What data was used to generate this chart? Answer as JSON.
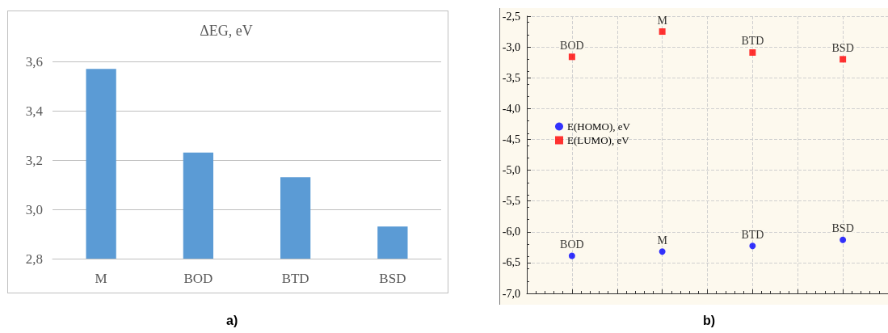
{
  "chart_data": [
    {
      "type": "bar",
      "title": "ΔEG, eV",
      "categories": [
        "M",
        "BOD",
        "BTD",
        "BSD"
      ],
      "values": [
        3.57,
        3.23,
        3.13,
        2.93
      ],
      "color": "#5b9bd5",
      "ylim": [
        2.8,
        3.6
      ],
      "yticks": [
        {
          "value": 2.8,
          "label": "2,8"
        },
        {
          "value": 3.0,
          "label": "3,0"
        },
        {
          "value": 3.2,
          "label": "3,2"
        },
        {
          "value": 3.4,
          "label": "3,4"
        },
        {
          "value": 3.6,
          "label": "3,6"
        }
      ],
      "grid": "y",
      "legend": false,
      "annotations": [
        "a)"
      ]
    },
    {
      "type": "scatter",
      "categories": [
        "BOD",
        "M",
        "BTD",
        "BSD"
      ],
      "series": [
        {
          "name": "E(HOMO), eV",
          "color": "#0000ff",
          "marker": "circle",
          "values": [
            -6.39,
            -6.32,
            -6.23,
            -6.13
          ]
        },
        {
          "name": "E(LUMO), eV",
          "color": "#ff0000",
          "marker": "square",
          "values": [
            -3.16,
            -2.75,
            -3.09,
            -3.2
          ]
        }
      ],
      "ylim": [
        -7.0,
        -2.5
      ],
      "yticks": [
        {
          "value": -7.0,
          "label": "-7,0"
        },
        {
          "value": -6.5,
          "label": "-6,5"
        },
        {
          "value": -6.0,
          "label": "-6,0"
        },
        {
          "value": -5.5,
          "label": "-5,5"
        },
        {
          "value": -5.0,
          "label": "-5,0"
        },
        {
          "value": -4.5,
          "label": "-4,5"
        },
        {
          "value": -4.0,
          "label": "-4,0"
        },
        {
          "value": -3.5,
          "label": "-3,5"
        },
        {
          "value": -3.0,
          "label": "-3,0"
        },
        {
          "value": -2.5,
          "label": "-2,5"
        }
      ],
      "grid": true,
      "legend": "left",
      "tick_labels": "y",
      "annotations": [
        "b)"
      ]
    }
  ]
}
